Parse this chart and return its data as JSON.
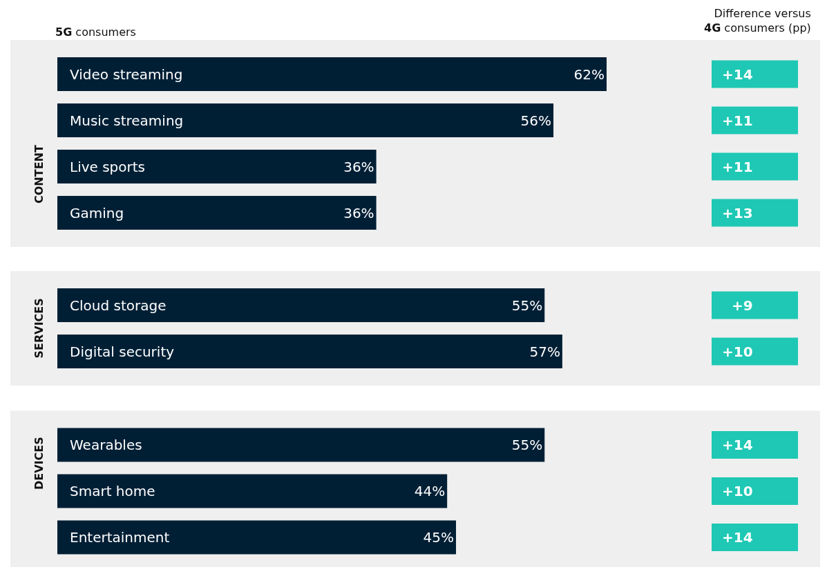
{
  "chart_data": [
    {
      "type": "bar",
      "orientation": "horizontal",
      "title": "CONTENT",
      "categories": [
        "Video streaming",
        "Music streaming",
        "Live sports",
        "Gaming"
      ],
      "series": [
        {
          "name": "5G consumers",
          "color": "#001f35",
          "values": [
            62,
            56,
            36,
            36
          ],
          "value_labels": [
            "62%",
            "56%",
            "36%",
            "36%"
          ]
        }
      ],
      "annotations": [
        "Difference versus\n4G consumers (pp)",
        "+14",
        "+11",
        "+11",
        "+13"
      ]
    },
    {
      "type": "bar",
      "orientation": "horizontal",
      "title": "SERVICES",
      "categories": [
        "Cloud storage",
        "Digital security"
      ],
      "series": [
        {
          "color": "#001f35",
          "values": [
            55,
            57
          ],
          "value_labels": [
            "55%",
            "57%"
          ]
        }
      ],
      "annotations": [
        "+9",
        "+10"
      ]
    },
    {
      "type": "bar",
      "orientation": "horizontal",
      "title": "DEVICES",
      "categories": [
        "Wearables",
        "Smart home",
        "Entertainment"
      ],
      "series": [
        {
          "color": "#001f35",
          "values": [
            55,
            44,
            45
          ],
          "value_labels": [
            "55%",
            "44%",
            "45%"
          ]
        }
      ],
      "annotations": [
        "+14",
        "+10",
        "+14"
      ]
    }
  ]
}
